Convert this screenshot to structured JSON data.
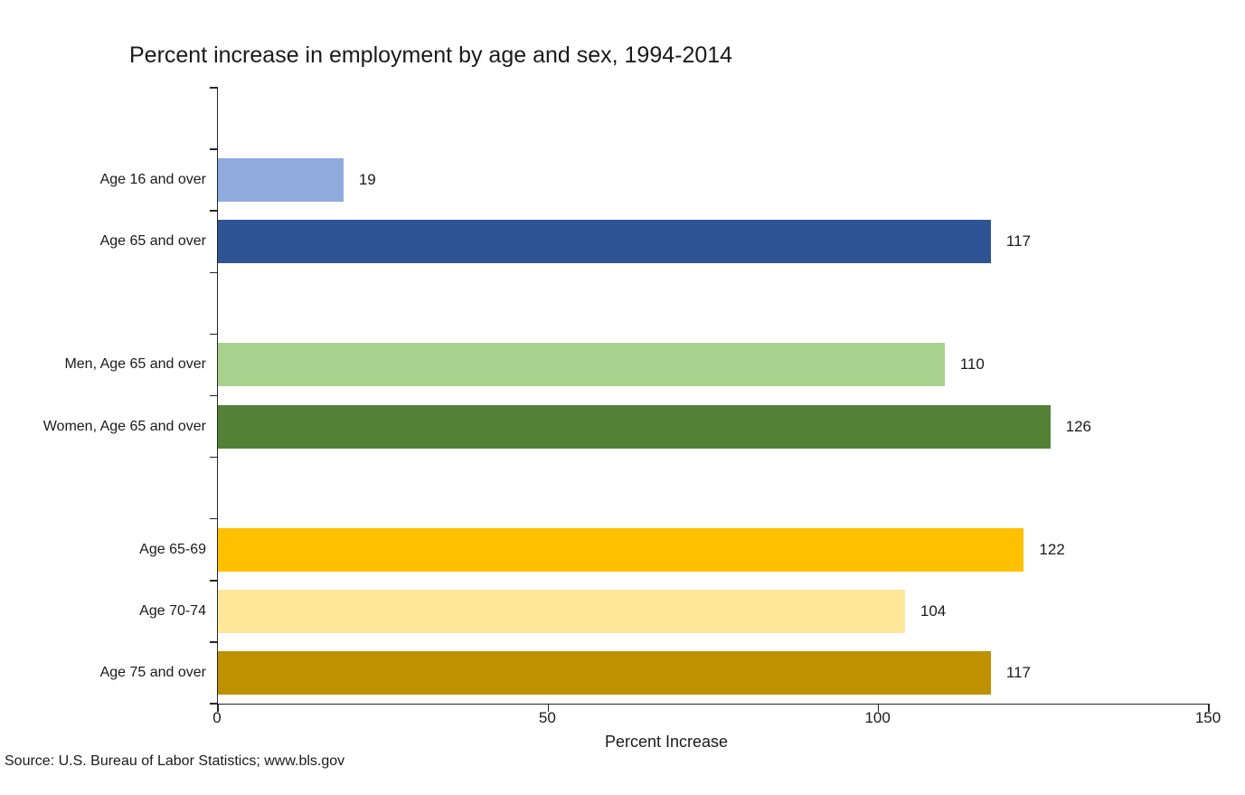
{
  "source_note": "Source: U.S. Bureau of Labor Statistics; www.bls.gov",
  "chart_data": {
    "type": "bar",
    "orientation": "horizontal",
    "title": "Percent increase in employment by age and sex, 1994-2014",
    "xlabel": "Percent Increase",
    "ylabel": "",
    "xlim": [
      0,
      150
    ],
    "xticks": [
      "0",
      "50",
      "100",
      "150"
    ],
    "grid": false,
    "legend": false,
    "categories": [
      "Age 16 and over",
      "Age 65 and over",
      "Men, Age 65 and over",
      "Women, Age 65 and over",
      "Age 65-69",
      "Age 70-74",
      "Age 75 and over"
    ],
    "values": [
      19,
      117,
      110,
      126,
      122,
      104,
      117
    ],
    "value_labels": [
      "19",
      "117",
      "110",
      "126",
      "122",
      "104",
      "117"
    ],
    "colors": [
      "#8FAADC",
      "#2F5496",
      "#A9D18E",
      "#538135",
      "#FFC000",
      "#FFE699",
      "#BF9000"
    ],
    "slots": [
      1,
      2,
      4,
      5,
      7,
      8,
      9
    ],
    "total_slots": 10,
    "axis_color": "#262626"
  }
}
